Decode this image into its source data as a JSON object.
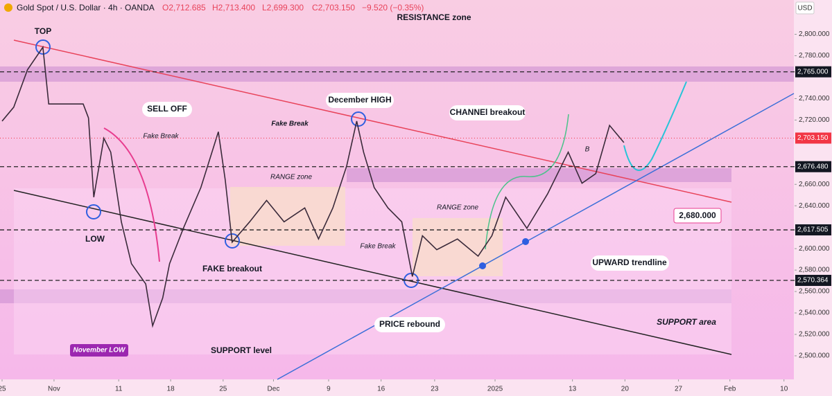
{
  "header": {
    "symbol": "Gold Spot / U.S. Dollar · 4h · OANDA",
    "open": "O2,712.685",
    "high": "H2,713.400",
    "low": "L2,699.300",
    "close": "C2,703.150",
    "change": "−9.520 (−0.35%)"
  },
  "chart_data": {
    "type": "line",
    "currency": "USD",
    "color": "#3a2a3a",
    "x": [
      0,
      0.22,
      0.48,
      0.77,
      0.88,
      1.14,
      1.53,
      1.63,
      1.73,
      1.92,
      2.05,
      2.25,
      2.44,
      2.71,
      2.84,
      3.03,
      3.16,
      3.42,
      3.75,
      4.08,
      4.21,
      4.34,
      4.67,
      4.99,
      5.32,
      5.71,
      5.97,
      6.24,
      6.5,
      6.69,
      6.82,
      7.02,
      7.28,
      7.54,
      7.74,
      7.93,
      8.2,
      8.59,
      8.98,
      9.24,
      9.5,
      9.9,
      10.29,
      10.68,
      10.94,
      11.2,
      11.46,
      11.73
    ],
    "values": [
      2719,
      2732,
      2767,
      2788,
      2735,
      2735,
      2735,
      2722,
      2648,
      2703,
      2690,
      2625,
      2586,
      2567,
      2528,
      2554,
      2586,
      2619,
      2657,
      2709,
      2664,
      2606,
      2625,
      2645,
      2625,
      2638,
      2609,
      2638,
      2677,
      2719,
      2690,
      2657,
      2638,
      2625,
      2574,
      2612,
      2599,
      2609,
      2593,
      2612,
      2648,
      2619,
      2651,
      2690,
      2661,
      2670,
      2715,
      2699
    ],
    "xlim": [
      0,
      14.95
    ],
    "ylim": [
      2478,
      2832
    ],
    "xticks": [
      {
        "value": 0,
        "label": "25"
      },
      {
        "value": 0.98,
        "label": "Nov"
      },
      {
        "value": 2.2,
        "label": "11"
      },
      {
        "value": 3.18,
        "label": "18"
      },
      {
        "value": 4.17,
        "label": "25"
      },
      {
        "value": 5.12,
        "label": "Dec"
      },
      {
        "value": 6.16,
        "label": "9"
      },
      {
        "value": 7.15,
        "label": "16"
      },
      {
        "value": 8.16,
        "label": "23"
      },
      {
        "value": 9.3,
        "label": "2025"
      },
      {
        "value": 10.76,
        "label": "13"
      },
      {
        "value": 11.75,
        "label": "20"
      },
      {
        "value": 12.76,
        "label": "27"
      },
      {
        "value": 13.73,
        "label": "Feb"
      },
      {
        "value": 14.75,
        "label": "10"
      }
    ],
    "yticks": [
      {
        "value": 2800,
        "label": "2,800.000"
      },
      {
        "value": 2780,
        "label": "2,780.000"
      },
      {
        "value": 2740,
        "label": "2,740.000"
      },
      {
        "value": 2720,
        "label": "2,720.000"
      },
      {
        "value": 2660,
        "label": "2,660.000"
      },
      {
        "value": 2640,
        "label": "2,640.000"
      },
      {
        "value": 2600,
        "label": "2,600.000"
      },
      {
        "value": 2580,
        "label": "2,580.000"
      },
      {
        "value": 2560,
        "label": "2,560.000"
      },
      {
        "value": 2540,
        "label": "2,540.000"
      },
      {
        "value": 2520,
        "label": "2,520.000"
      },
      {
        "value": 2500,
        "label": "2,500.000"
      }
    ],
    "levels": [
      {
        "value": 2765,
        "label": "2,765.000"
      },
      {
        "value": 2676.48,
        "label": "2,676.480"
      },
      {
        "value": 2617.505,
        "label": "2,617.505"
      },
      {
        "value": 2570.364,
        "label": "2,570.364"
      }
    ],
    "last": {
      "value": 2703.15,
      "label": "2,703.150"
    }
  },
  "annotations": [
    "RESISTANCE zone",
    "TOP",
    "SELL OFF",
    "Fake Break",
    "LOW",
    "FAKE breakout",
    "November LOW",
    "SUPPORT level",
    "Fake Break",
    "RANGE zone",
    "December HIGH",
    "Fake Break",
    "RANGE zone",
    "PRICE rebound",
    "CHANNEl breakout",
    "B",
    "UPWARD trendline",
    "SUPPORT area",
    "2,680.000"
  ]
}
